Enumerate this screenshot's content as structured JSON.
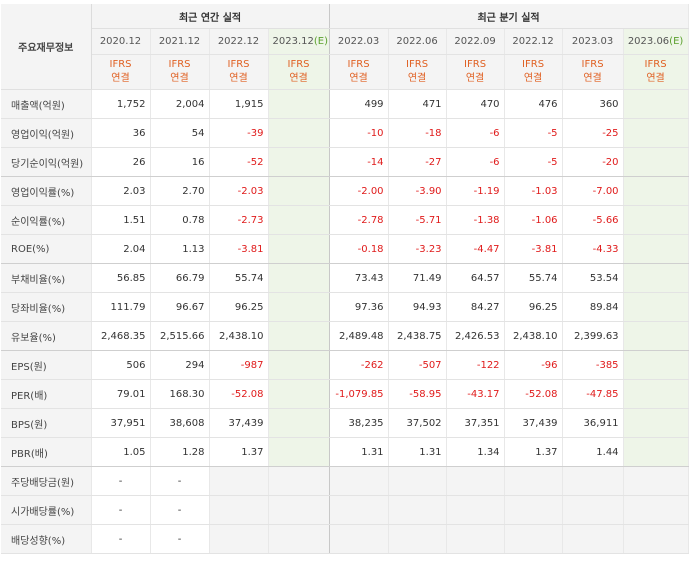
{
  "corner_label": "주요재무정보",
  "groups": {
    "annual": "최근 연간 실적",
    "quarterly": "최근 분기 실적"
  },
  "periods": [
    {
      "label": "2020.12",
      "est": ""
    },
    {
      "label": "2021.12",
      "est": ""
    },
    {
      "label": "2022.12",
      "est": ""
    },
    {
      "label": "2023.12",
      "est": "(E)"
    },
    {
      "label": "2022.03",
      "est": ""
    },
    {
      "label": "2022.06",
      "est": ""
    },
    {
      "label": "2022.09",
      "est": ""
    },
    {
      "label": "2022.12",
      "est": ""
    },
    {
      "label": "2023.03",
      "est": ""
    },
    {
      "label": "2023.06",
      "est": "(E)"
    }
  ],
  "basis": {
    "line1": "IFRS",
    "line2": "연결"
  },
  "rows": [
    {
      "label": "매출액(억원)",
      "values": [
        "1,752",
        "2,004",
        "1,915",
        "",
        "499",
        "471",
        "470",
        "476",
        "360",
        ""
      ]
    },
    {
      "label": "영업이익(억원)",
      "values": [
        "36",
        "54",
        "-39",
        "",
        "-10",
        "-18",
        "-6",
        "-5",
        "-25",
        ""
      ]
    },
    {
      "label": "당기순이익(억원)",
      "values": [
        "26",
        "16",
        "-52",
        "",
        "-14",
        "-27",
        "-6",
        "-5",
        "-20",
        ""
      ]
    },
    {
      "label": "영업이익률(%)",
      "values": [
        "2.03",
        "2.70",
        "-2.03",
        "",
        "-2.00",
        "-3.90",
        "-1.19",
        "-1.03",
        "-7.00",
        ""
      ]
    },
    {
      "label": "순이익률(%)",
      "values": [
        "1.51",
        "0.78",
        "-2.73",
        "",
        "-2.78",
        "-5.71",
        "-1.38",
        "-1.06",
        "-5.66",
        ""
      ]
    },
    {
      "label": "ROE(%)",
      "values": [
        "2.04",
        "1.13",
        "-3.81",
        "",
        "-0.18",
        "-3.23",
        "-4.47",
        "-3.81",
        "-4.33",
        ""
      ]
    },
    {
      "label": "부채비율(%)",
      "values": [
        "56.85",
        "66.79",
        "55.74",
        "",
        "73.43",
        "71.49",
        "64.57",
        "55.74",
        "53.54",
        ""
      ]
    },
    {
      "label": "당좌비율(%)",
      "values": [
        "111.79",
        "96.67",
        "96.25",
        "",
        "97.36",
        "94.93",
        "84.27",
        "96.25",
        "89.84",
        ""
      ]
    },
    {
      "label": "유보율(%)",
      "values": [
        "2,468.35",
        "2,515.66",
        "2,438.10",
        "",
        "2,489.48",
        "2,438.75",
        "2,426.53",
        "2,438.10",
        "2,399.63",
        ""
      ]
    },
    {
      "label": "EPS(원)",
      "values": [
        "506",
        "294",
        "-987",
        "",
        "-262",
        "-507",
        "-122",
        "-96",
        "-385",
        ""
      ]
    },
    {
      "label": "PER(배)",
      "values": [
        "79.01",
        "168.30",
        "-52.08",
        "",
        "-1,079.85",
        "-58.95",
        "-43.17",
        "-52.08",
        "-47.85",
        ""
      ]
    },
    {
      "label": "BPS(원)",
      "values": [
        "37,951",
        "38,608",
        "37,439",
        "",
        "38,235",
        "37,502",
        "37,351",
        "37,439",
        "36,911",
        ""
      ]
    },
    {
      "label": "PBR(배)",
      "values": [
        "1.05",
        "1.28",
        "1.37",
        "",
        "1.31",
        "1.31",
        "1.34",
        "1.37",
        "1.44",
        ""
      ]
    },
    {
      "label": "주당배당금(원)",
      "values": [
        "-",
        "-",
        "",
        "",
        "",
        "",
        "",
        "",
        "",
        ""
      ]
    },
    {
      "label": "시가배당률(%)",
      "values": [
        "-",
        "-",
        "",
        "",
        "",
        "",
        "",
        "",
        "",
        ""
      ]
    },
    {
      "label": "배당성향(%)",
      "values": [
        "-",
        "-",
        "",
        "",
        "",
        "",
        "",
        "",
        "",
        ""
      ]
    }
  ]
}
